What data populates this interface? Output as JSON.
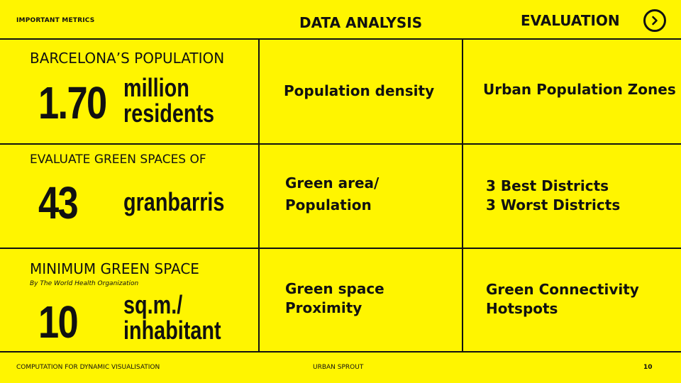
{
  "header": {
    "left_label": "IMPORTANT METRICS",
    "center_title": "DATA ANALYSIS",
    "right_title": "EVALUATION",
    "next_icon": "chevron-right-circle-icon"
  },
  "rows": [
    {
      "heading": "BARCELONA’S POPULATION",
      "number": "1.70",
      "unit_line1": "million",
      "unit_line2": "residents",
      "analysis_line1": "Population density",
      "analysis_line2": "",
      "evaluation_line1": "Urban Population Zones",
      "evaluation_line2": ""
    },
    {
      "heading": "EVALUATE GREEN SPACES OF",
      "number": "43",
      "unit_line1": "granbarris",
      "unit_line2": "",
      "analysis_line1": "Green area/",
      "analysis_line2": "Population",
      "evaluation_line1": "3 Best Districts",
      "evaluation_line2": "3 Worst Districts"
    },
    {
      "heading": "MINIMUM GREEN SPACE",
      "subheading": "By The World Health Organization",
      "number": "10",
      "unit_line1": "sq.m./",
      "unit_line2": "inhabitant",
      "analysis_line1": "Green space",
      "analysis_line2": "Proximity",
      "evaluation_line1": "Green Connectivity",
      "evaluation_line2": "Hotspots"
    }
  ],
  "footer": {
    "left": "COMPUTATION FOR DYNAMIC VISUALISATION",
    "center": "URBAN SPROUT",
    "page_number": "10"
  },
  "colors": {
    "background": "#FFF500",
    "ink": "#111111"
  }
}
